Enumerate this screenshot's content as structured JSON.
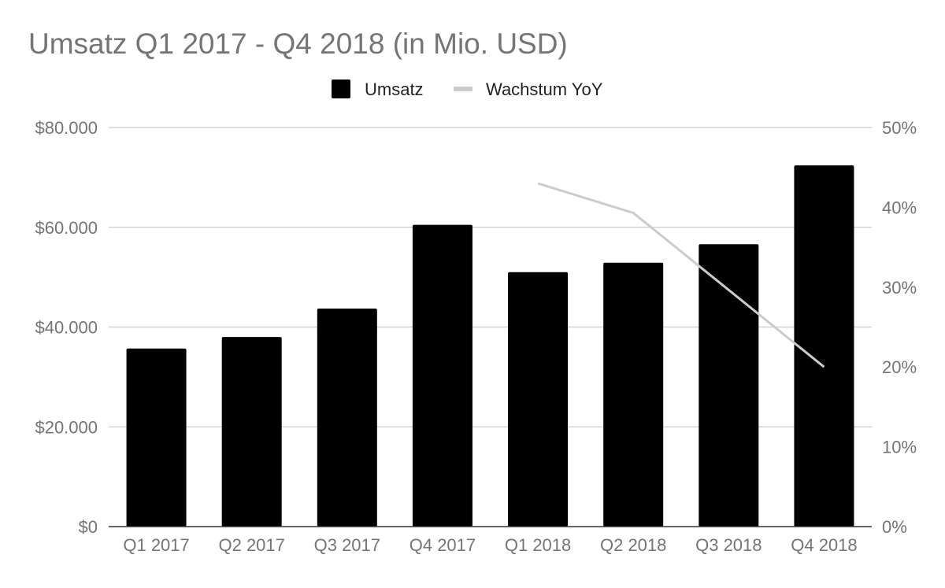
{
  "chart_data": {
    "type": "bar",
    "title": "Umsatz Q1 2017 - Q4 2018 (in Mio. USD)",
    "categories": [
      "Q1 2017",
      "Q2 2017",
      "Q3 2017",
      "Q4 2017",
      "Q1 2018",
      "Q2 2018",
      "Q3 2018",
      "Q4 2018"
    ],
    "series": [
      {
        "name": "Umsatz",
        "kind": "bar",
        "axis": "left",
        "color": "#000000",
        "values": [
          35700,
          38000,
          43700,
          60500,
          51000,
          52900,
          56600,
          72400
        ]
      },
      {
        "name": "Wachstum YoY",
        "kind": "line",
        "axis": "right",
        "color": "#cccccc",
        "values": [
          null,
          null,
          null,
          null,
          0.43,
          0.393,
          null,
          0.2
        ]
      }
    ],
    "ylim_left": [
      0,
      80000
    ],
    "yticks_left": [
      "$0",
      "$20.000",
      "$40.000",
      "$60.000",
      "$80.000"
    ],
    "ylim_right": [
      0,
      0.5
    ],
    "yticks_right": [
      "0%",
      "10%",
      "20%",
      "30%",
      "40%",
      "50%"
    ],
    "grid": true,
    "legend_position": "top-center",
    "colors": {
      "title": "#757575",
      "axis_text": "#757575",
      "legend_text": "#222222",
      "grid": "#cccccc",
      "axis_line": "#333333"
    }
  }
}
